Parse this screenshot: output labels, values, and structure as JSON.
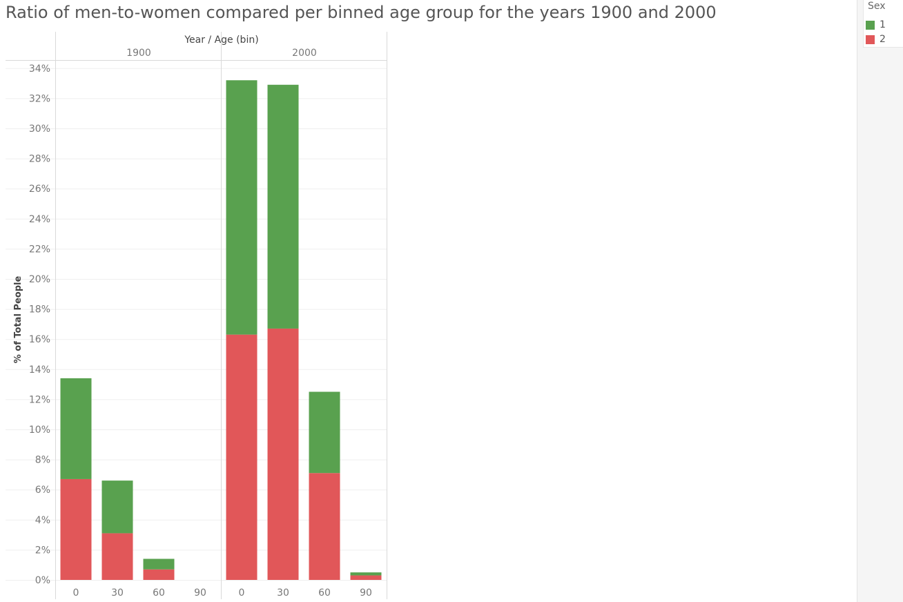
{
  "title": "Ratio of men-to-women compared per binned age group for the years 1900 and 2000",
  "legend": {
    "title": "Sex",
    "items": [
      {
        "label": "1",
        "color": "#59a14f"
      },
      {
        "label": "2",
        "color": "#e15759"
      }
    ]
  },
  "chart_data": {
    "type": "bar",
    "stacked": true,
    "title": "Ratio of men-to-women compared per binned age group for the years 1900 and 2000",
    "header": "Year  /  Age (bin)",
    "ylabel": "% of Total People",
    "ylim": [
      0,
      34
    ],
    "yticks": [
      "0%",
      "2%",
      "4%",
      "6%",
      "8%",
      "10%",
      "12%",
      "14%",
      "16%",
      "18%",
      "20%",
      "22%",
      "24%",
      "26%",
      "28%",
      "30%",
      "32%",
      "34%"
    ],
    "grid": true,
    "legend_position": "top-right",
    "panels": [
      {
        "year": "1900",
        "categories": [
          "0",
          "30",
          "60",
          "90"
        ],
        "series": [
          {
            "name": "2",
            "color": "#e15759",
            "values": [
              6.7,
              3.1,
              0.7,
              0.0
            ]
          },
          {
            "name": "1",
            "color": "#59a14f",
            "values": [
              6.7,
              3.5,
              0.7,
              0.0
            ]
          }
        ]
      },
      {
        "year": "2000",
        "categories": [
          "0",
          "30",
          "60",
          "90"
        ],
        "series": [
          {
            "name": "2",
            "color": "#e15759",
            "values": [
              16.3,
              16.7,
              7.1,
              0.3
            ]
          },
          {
            "name": "1",
            "color": "#59a14f",
            "values": [
              16.9,
              16.2,
              5.4,
              0.2
            ]
          }
        ]
      }
    ]
  }
}
